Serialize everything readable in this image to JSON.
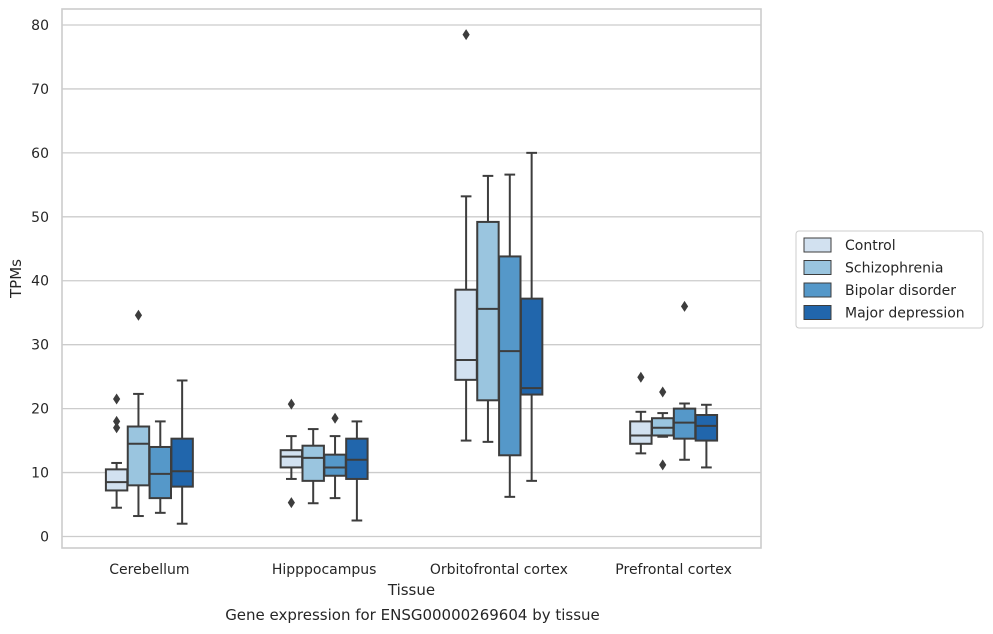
{
  "caption": "Gene expression for ENSG00000269604 by tissue",
  "chart_data": {
    "type": "box",
    "title": "",
    "xlabel": "Tissue",
    "ylabel": "TPMs",
    "ylim": [
      -1.8,
      82.5
    ],
    "yticks": [
      0,
      10,
      20,
      30,
      40,
      50,
      60,
      70,
      80
    ],
    "grid": true,
    "legend_position": "right",
    "categories": [
      "Cerebellum",
      "Hipppocampus",
      "Orbitofrontal cortex",
      "Prefrontal cortex"
    ],
    "series": [
      {
        "name": "Control",
        "color": "#d2e1f0",
        "boxes": [
          {
            "whisker_low": 4.5,
            "q1": 7.2,
            "median": 8.5,
            "q3": 10.5,
            "whisker_high": 11.5,
            "outliers": [
              21.5,
              18.0,
              17.0
            ]
          },
          {
            "whisker_low": 9.0,
            "q1": 10.8,
            "median": 12.5,
            "q3": 13.5,
            "whisker_high": 15.7,
            "outliers": [
              20.7,
              5.3
            ]
          },
          {
            "whisker_low": 15.0,
            "q1": 24.5,
            "median": 27.6,
            "q3": 38.6,
            "whisker_high": 53.2,
            "outliers": [
              78.5
            ]
          },
          {
            "whisker_low": 13.0,
            "q1": 14.5,
            "median": 15.8,
            "q3": 18.0,
            "whisker_high": 19.5,
            "outliers": [
              24.9
            ]
          }
        ]
      },
      {
        "name": "Schizophrenia",
        "color": "#9ac5df",
        "boxes": [
          {
            "whisker_low": 3.2,
            "q1": 8.0,
            "median": 14.5,
            "q3": 17.2,
            "whisker_high": 22.3,
            "outliers": [
              34.6
            ]
          },
          {
            "whisker_low": 5.2,
            "q1": 8.7,
            "median": 12.3,
            "q3": 14.2,
            "whisker_high": 16.8,
            "outliers": []
          },
          {
            "whisker_low": 14.8,
            "q1": 21.3,
            "median": 35.6,
            "q3": 49.2,
            "whisker_high": 56.4,
            "outliers": []
          },
          {
            "whisker_low": 15.6,
            "q1": 15.8,
            "median": 17.0,
            "q3": 18.5,
            "whisker_high": 19.3,
            "outliers": [
              22.6,
              11.2
            ]
          }
        ]
      },
      {
        "name": "Bipolar disorder",
        "color": "#5598c9",
        "boxes": [
          {
            "whisker_low": 3.7,
            "q1": 6.0,
            "median": 9.8,
            "q3": 14.0,
            "whisker_high": 18.0,
            "outliers": []
          },
          {
            "whisker_low": 6.0,
            "q1": 9.5,
            "median": 10.8,
            "q3": 12.8,
            "whisker_high": 15.7,
            "outliers": [
              18.5
            ]
          },
          {
            "whisker_low": 6.2,
            "q1": 12.7,
            "median": 29.0,
            "q3": 43.8,
            "whisker_high": 56.6,
            "outliers": []
          },
          {
            "whisker_low": 12.0,
            "q1": 15.3,
            "median": 17.8,
            "q3": 20.0,
            "whisker_high": 20.8,
            "outliers": [
              36.0
            ]
          }
        ]
      },
      {
        "name": "Major depression",
        "color": "#2166ac",
        "boxes": [
          {
            "whisker_low": 2.0,
            "q1": 7.8,
            "median": 10.2,
            "q3": 15.3,
            "whisker_high": 24.4,
            "outliers": []
          },
          {
            "whisker_low": 2.5,
            "q1": 9.0,
            "median": 12.0,
            "q3": 15.3,
            "whisker_high": 18.0,
            "outliers": []
          },
          {
            "whisker_low": 8.7,
            "q1": 22.2,
            "median": 23.2,
            "q3": 37.2,
            "whisker_high": 60.0,
            "outliers": []
          },
          {
            "whisker_low": 10.8,
            "q1": 15.0,
            "median": 17.3,
            "q3": 19.0,
            "whisker_high": 20.6,
            "outliers": []
          }
        ]
      }
    ]
  }
}
